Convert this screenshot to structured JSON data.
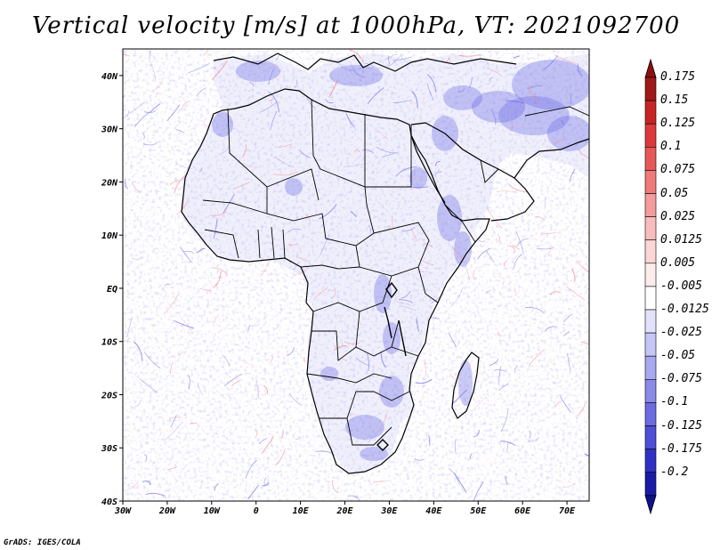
{
  "title": "Vertical velocity [m/s] at 1000hPa, VT: 2021092700",
  "credit": "GrADS: IGES/COLA",
  "map": {
    "lon_range": [
      -30,
      75
    ],
    "lat_range": [
      -40,
      45
    ],
    "lat_ticks": [
      {
        "value": 40,
        "label": "40N"
      },
      {
        "value": 30,
        "label": "30N"
      },
      {
        "value": 20,
        "label": "20N"
      },
      {
        "value": 10,
        "label": "10N"
      },
      {
        "value": 0,
        "label": "EQ"
      },
      {
        "value": -10,
        "label": "10S"
      },
      {
        "value": -20,
        "label": "20S"
      },
      {
        "value": -30,
        "label": "30S"
      },
      {
        "value": -40,
        "label": "40S"
      }
    ],
    "lon_ticks": [
      {
        "value": -30,
        "label": "30W"
      },
      {
        "value": -20,
        "label": "20W"
      },
      {
        "value": -10,
        "label": "10W"
      },
      {
        "value": 0,
        "label": "0"
      },
      {
        "value": 10,
        "label": "10E"
      },
      {
        "value": 20,
        "label": "20E"
      },
      {
        "value": 30,
        "label": "30E"
      },
      {
        "value": 40,
        "label": "40E"
      },
      {
        "value": 50,
        "label": "50E"
      },
      {
        "value": 60,
        "label": "60E"
      },
      {
        "value": 70,
        "label": "70E"
      }
    ]
  },
  "colorbar": {
    "levels": [
      {
        "label": "0.175",
        "color": "#a01818"
      },
      {
        "label": "0.15",
        "color": "#c82424"
      },
      {
        "label": "0.125",
        "color": "#dc3a3a"
      },
      {
        "label": "0.1",
        "color": "#e65858"
      },
      {
        "label": "0.075",
        "color": "#ee7a7a"
      },
      {
        "label": "0.05",
        "color": "#f49c9c"
      },
      {
        "label": "0.025",
        "color": "#f8bcbc"
      },
      {
        "label": "0.0125",
        "color": "#fbd6d6"
      },
      {
        "label": "0.005",
        "color": "#fdecec"
      },
      {
        "label": "-0.005",
        "color": "#ffffff"
      },
      {
        "label": "-0.0125",
        "color": "#e2e2fb"
      },
      {
        "label": "-0.025",
        "color": "#c6c6f6"
      },
      {
        "label": "-0.05",
        "color": "#a8a8f0"
      },
      {
        "label": "-0.075",
        "color": "#8a8ae8"
      },
      {
        "label": "-0.1",
        "color": "#6c6ce0"
      },
      {
        "label": "-0.125",
        "color": "#4e4ed6"
      },
      {
        "label": "-0.175",
        "color": "#3030c4"
      },
      {
        "label": "-0.2",
        "color": "#1a1aa6"
      }
    ],
    "top_color": "#8c1010",
    "bottom_color": "#10108c"
  },
  "field": {
    "uplift_color": "#6a6ae6",
    "sink_color": "#f08a8a",
    "land_tint": "#e4e4fa"
  }
}
